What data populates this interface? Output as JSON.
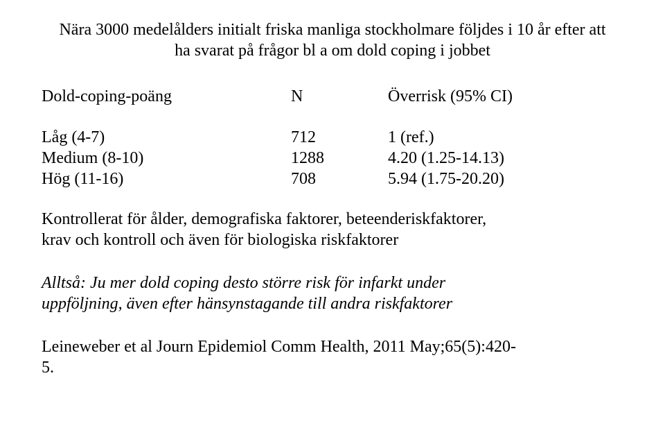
{
  "title_line1": "Nära 3000 medelålders initialt friska manliga stockholmare följdes i 10 år efter att",
  "title_line2": "ha svarat på frågor bl a om dold coping i jobbet",
  "header": {
    "col1": "Dold-coping-poäng",
    "col2": "N",
    "col3": "Överrisk (95% CI)"
  },
  "rows": [
    {
      "label": "Låg (4-7)",
      "n": "712",
      "risk": "1 (ref.)"
    },
    {
      "label": "Medium (8-10)",
      "n": "1288",
      "risk": "4.20 (1.25-14.13)"
    },
    {
      "label": "Hög (11-16)",
      "n": "708",
      "risk": "5.94 (1.75-20.20)"
    }
  ],
  "note_line1": "Kontrollerat för ålder, demografiska faktorer, beteenderiskfaktorer,",
  "note_line2": "krav och kontroll och även för biologiska riskfaktorer",
  "conclusion_line1": "Alltså: Ju mer dold coping desto större risk för infarkt under",
  "conclusion_line2": "uppföljning, även efter hänsynstagande till andra riskfaktorer",
  "ref_line1": "Leineweber et al Journ Epidemiol Comm Health, 2011 May;65(5):420-",
  "ref_line2": "5."
}
